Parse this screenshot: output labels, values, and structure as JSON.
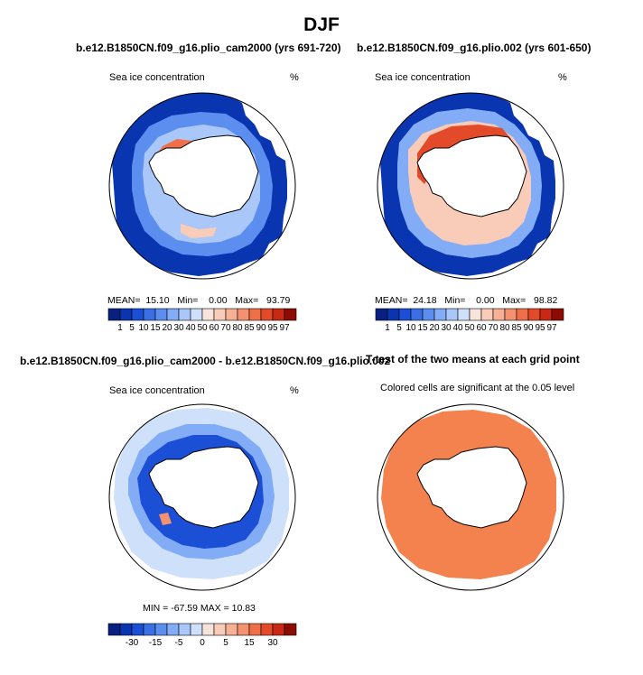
{
  "figure": {
    "title": "DJF"
  },
  "panels": [
    {
      "title": "b.e12.B1850CN.f09_g16.plio_cam2000 (yrs 691-720)",
      "left_label": "Sea ice concentration",
      "right_label": "%",
      "stats": {
        "mean_label": "MEAN=",
        "mean": "15.10",
        "min_label": "Min=",
        "min": "0.00",
        "max_label": "Max=",
        "max": "93.79"
      }
    },
    {
      "title": "b.e12.B1850CN.f09_g16.plio.002 (yrs 601-650)",
      "left_label": "Sea ice concentration",
      "right_label": "%",
      "stats": {
        "mean_label": "MEAN=",
        "mean": "24.18",
        "min_label": "Min=",
        "min": "0.00",
        "max_label": "Max=",
        "max": "98.82"
      }
    },
    {
      "title": "b.e12.B1850CN.f09_g16.plio_cam2000 - b.e12.B1850CN.f09_g16.plio.002",
      "left_label": "Sea ice concentration",
      "right_label": "%",
      "stats": {
        "text": "MIN = -67.59  MAX =  10.83"
      }
    },
    {
      "title": "T-test of the two means at each grid point",
      "subtitle": "Colored cells are significant at the 0.05 level"
    }
  ],
  "colorbars": {
    "concentration": {
      "colors": [
        "#08207f",
        "#0a35b0",
        "#1a4fd6",
        "#3a6fe6",
        "#5c8ef0",
        "#82acf5",
        "#a9c7f8",
        "#cfe0fb",
        "#f6e4dc",
        "#f8ccb8",
        "#f6b093",
        "#f4926f",
        "#ef6f49",
        "#e34a2a",
        "#c82814",
        "#8c0c04"
      ],
      "tick_labels": [
        "1",
        "5",
        "10",
        "15",
        "20",
        "30",
        "40",
        "50",
        "60",
        "70",
        "80",
        "85",
        "90",
        "95",
        "97"
      ]
    },
    "difference": {
      "colors": [
        "#08207f",
        "#0a35b0",
        "#1a4fd6",
        "#3a6fe6",
        "#5c8ef0",
        "#82acf5",
        "#a9c7f8",
        "#cfe0fb",
        "#f6e4dc",
        "#f8ccb8",
        "#f6b093",
        "#f4926f",
        "#ef6f49",
        "#e34a2a",
        "#c82814",
        "#8c0c04"
      ],
      "tick_labels": [
        "-30",
        "-15",
        "-5",
        "0",
        "5",
        "15",
        "30"
      ]
    }
  },
  "chart_data": [
    {
      "type": "heatmap",
      "title": "b.e12.B1850CN.f09_g16.plio_cam2000 (yrs 691-720)",
      "variable": "Sea ice concentration",
      "units": "%",
      "projection": "south polar stereographic",
      "mean": 15.1,
      "min": 0.0,
      "max": 93.79
    },
    {
      "type": "heatmap",
      "title": "b.e12.B1850CN.f09_g16.plio.002 (yrs 601-650)",
      "variable": "Sea ice concentration",
      "units": "%",
      "projection": "south polar stereographic",
      "mean": 24.18,
      "min": 0.0,
      "max": 98.82
    },
    {
      "type": "heatmap",
      "title": "b.e12.B1850CN.f09_g16.plio_cam2000 - b.e12.B1850CN.f09_g16.plio.002",
      "variable": "Sea ice concentration",
      "units": "%",
      "projection": "south polar stereographic",
      "min": -67.59,
      "max": 10.83
    },
    {
      "type": "heatmap",
      "title": "T-test of the two means at each grid point",
      "note": "Colored cells are significant at the 0.05 level",
      "projection": "south polar stereographic"
    }
  ]
}
